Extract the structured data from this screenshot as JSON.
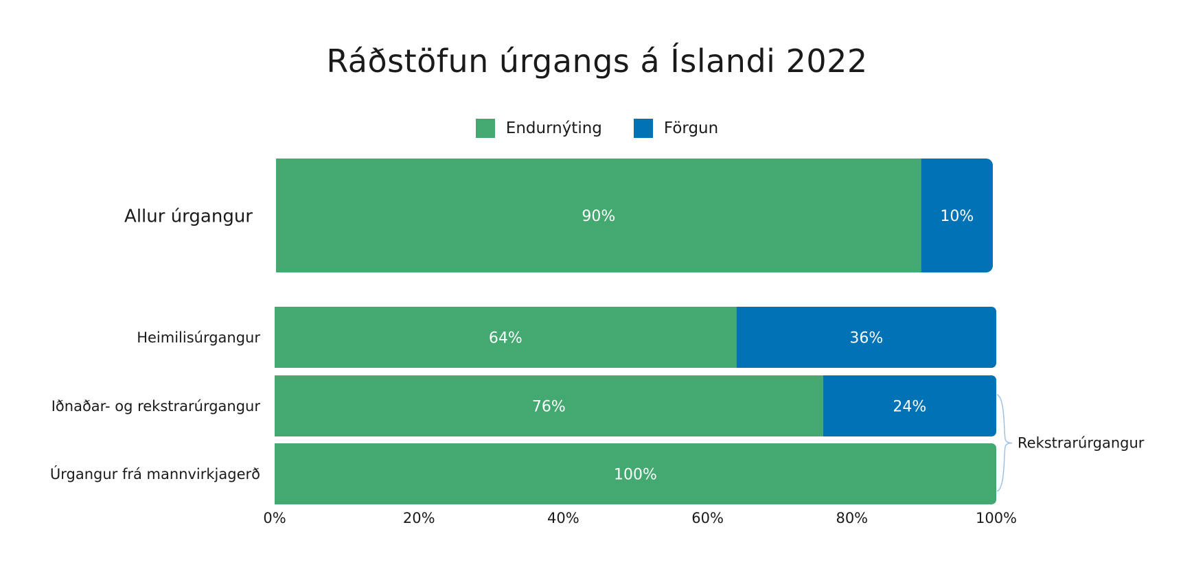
{
  "chart_data": {
    "type": "bar",
    "orientation": "horizontal",
    "stacked": true,
    "title": "Ráðstöfun úrgangs á Íslandi 2022",
    "categories": [
      "Allur úrgangur",
      "Heimilisúrgangur",
      "Iðnaðar- og rekstrarúrgangur",
      "Úrgangur frá mannvirkjagerð"
    ],
    "series": [
      {
        "name": "Endurnýting",
        "color": "#43a970",
        "values": [
          90,
          64,
          76,
          100
        ],
        "labels": [
          "90%",
          "64%",
          "76%",
          "100%"
        ]
      },
      {
        "name": "Förgun",
        "color": "#0072b5",
        "values": [
          10,
          36,
          24,
          0
        ],
        "labels": [
          "10%",
          "36%",
          "24%",
          ""
        ]
      }
    ],
    "xlim": [
      0,
      100
    ],
    "x_ticks": [
      "0%",
      "20%",
      "40%",
      "60%",
      "80%",
      "100%"
    ],
    "legend_placement": "top-center",
    "grid": false,
    "annotation": {
      "text": "Rekstrarúrgangur",
      "spans": [
        "Iðnaðar- og rekstrarúrgangur",
        "Úrgangur frá mannvirkjagerð"
      ]
    }
  }
}
